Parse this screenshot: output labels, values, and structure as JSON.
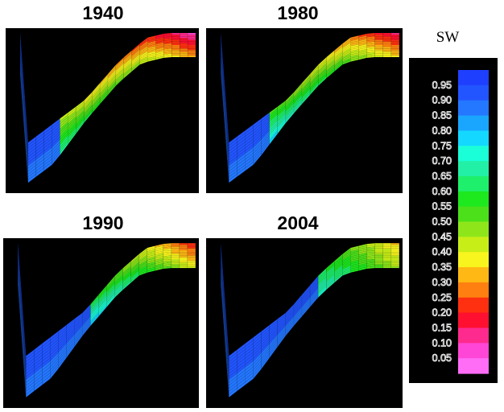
{
  "figure": {
    "panels": [
      {
        "year": "1940",
        "stage": 0
      },
      {
        "year": "1980",
        "stage": 1
      },
      {
        "year": "1990",
        "stage": 2
      },
      {
        "year": "2004",
        "stage": 3
      }
    ],
    "legend": {
      "title": "SW",
      "ticks": [
        "0.95",
        "0.90",
        "0.85",
        "0.80",
        "0.75",
        "0.70",
        "0.65",
        "0.60",
        "0.55",
        "0.50",
        "0.45",
        "0.40",
        "0.35",
        "0.30",
        "0.25",
        "0.20",
        "0.15",
        "0.10",
        "0.05"
      ],
      "colors": [
        "#1f3fff",
        "#2255ff",
        "#2477ff",
        "#1aa6ff",
        "#14d8ff",
        "#1affd8",
        "#22f0a6",
        "#1ef06c",
        "#1ee81e",
        "#4ce01a",
        "#8ee61a",
        "#c8ee18",
        "#f8f41e",
        "#ffb814",
        "#ff8010",
        "#ff3010",
        "#ff1030",
        "#ff2a8e",
        "#ff46d6",
        "#ff6cf6"
      ]
    }
  }
}
